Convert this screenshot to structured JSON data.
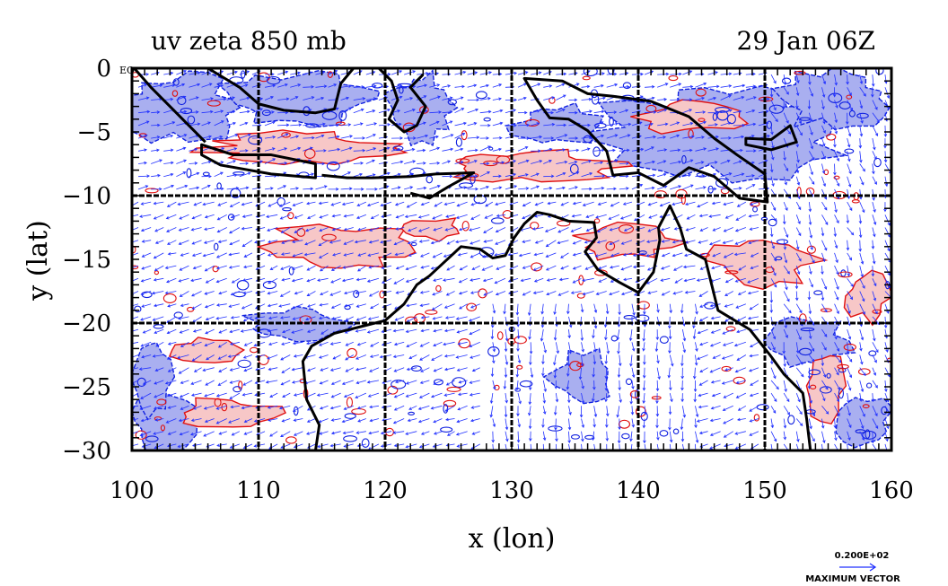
{
  "plot": {
    "title_left": "uv zeta 850 mb",
    "title_right": "29 Jan 06Z",
    "xlabel": "x (lon)",
    "ylabel": "y (lat)",
    "eq_label": "EQ",
    "ref_vector_value": "0.200E+02",
    "ref_vector_label": "MAXIMUM VECTOR"
  },
  "map": {
    "lon_range": [
      100,
      160
    ],
    "lat_range": [
      -30,
      0
    ],
    "x_ticks": [
      "100",
      "110",
      "120",
      "130",
      "140",
      "150",
      "160"
    ],
    "y_ticks": [
      "0",
      "−5",
      "−10",
      "−15",
      "−20",
      "−25",
      "−30"
    ],
    "grid_lons": [
      110,
      120,
      130,
      140,
      150
    ],
    "grid_lats": [
      -10,
      -20
    ],
    "colors": {
      "positive_vorticity_fill": "#f7c7c7",
      "positive_vorticity_contour": "#e01010",
      "negative_vorticity_fill": "#a9aff0",
      "negative_vorticity_contour": "#1020e0",
      "wind_vectors": "#2030ff",
      "coastline": "#000000"
    }
  }
}
